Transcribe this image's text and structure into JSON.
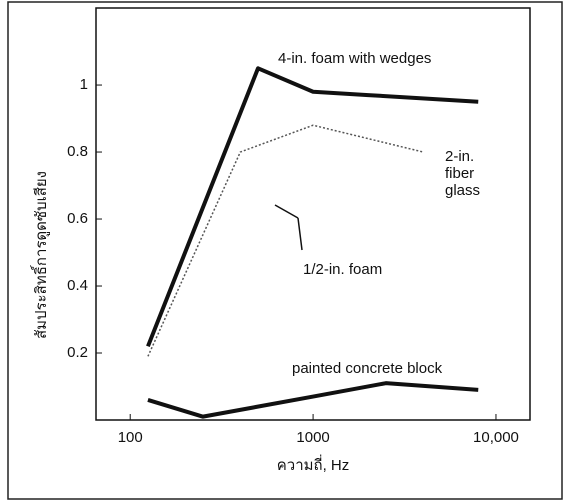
{
  "chart_data": {
    "type": "line",
    "xlabel": "ความถี่, Hz",
    "ylabel": "สัมประสิทธิ์การดูดซับเสียง",
    "xscale": "log",
    "xlim": [
      65,
      15350
    ],
    "ylim": [
      0,
      1.23
    ],
    "xticks": [
      100,
      1000,
      {
        "value": 10000,
        "label": "10,000"
      }
    ],
    "yticks": [
      0.2,
      0.4,
      0.6,
      0.8,
      1
    ],
    "series": [
      {
        "name": "4-in. foam with wedges",
        "color": "#111111",
        "style": "solid",
        "width": 4,
        "x": [
          125,
          500,
          1000,
          2000,
          8000
        ],
        "values": [
          0.22,
          1.05,
          0.98,
          0.97,
          0.95
        ]
      },
      {
        "name": "2-in. fiber glass",
        "color": "#555555",
        "style": "dotted",
        "width": 1.5,
        "x": [
          125,
          400,
          1000,
          4000
        ],
        "values": [
          0.19,
          0.8,
          0.88,
          0.8
        ]
      },
      {
        "name": "painted concrete block",
        "color": "#111111",
        "style": "solid",
        "width": 4,
        "x": [
          125,
          250,
          1000,
          2500,
          8000
        ],
        "values": [
          0.06,
          0.01,
          0.07,
          0.11,
          0.09
        ]
      }
    ],
    "annotations": [
      "1/2-in. foam"
    ]
  }
}
